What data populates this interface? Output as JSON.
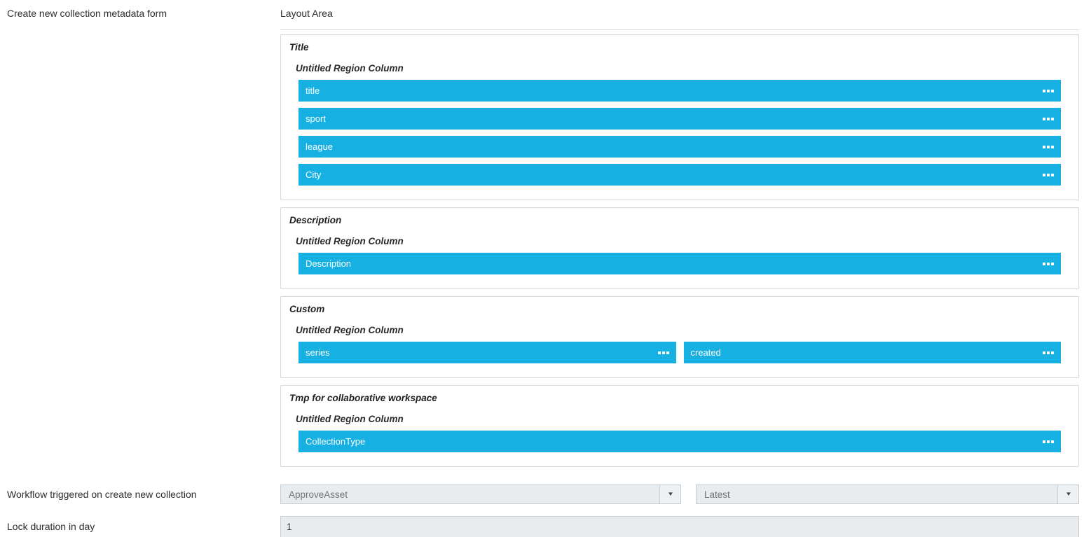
{
  "form": {
    "metadata_form_label": "Create new collection metadata form",
    "workflow_label": "Workflow triggered on create new collection",
    "workflow_dropdowns": [
      {
        "value": "ApproveAsset"
      },
      {
        "value": "Latest"
      }
    ],
    "lock_label": "Lock duration in day",
    "lock_value": "1"
  },
  "layout_area": {
    "heading": "Layout Area",
    "regions": [
      {
        "title": "Title",
        "column_label": "Untitled Region Column",
        "rows": [
          [
            "title"
          ],
          [
            "sport"
          ],
          [
            "league"
          ],
          [
            "City"
          ]
        ]
      },
      {
        "title": "Description",
        "column_label": "Untitled Region Column",
        "rows": [
          [
            "Description"
          ]
        ]
      },
      {
        "title": "Custom",
        "column_label": "Untitled Region Column",
        "rows": [
          [
            "series",
            "created"
          ]
        ]
      },
      {
        "title": "Tmp for collaborative workspace",
        "column_label": "Untitled Region Column",
        "rows": [
          [
            "CollectionType"
          ]
        ]
      }
    ]
  },
  "icons": {
    "dropdown_caret": "▼",
    "drag_handle": "three-dots"
  },
  "colors": {
    "accent_blue": "#16b0e2",
    "field_background": "#e8ecef",
    "field_border": "#c6ced4",
    "region_border": "#d8d8d8"
  }
}
